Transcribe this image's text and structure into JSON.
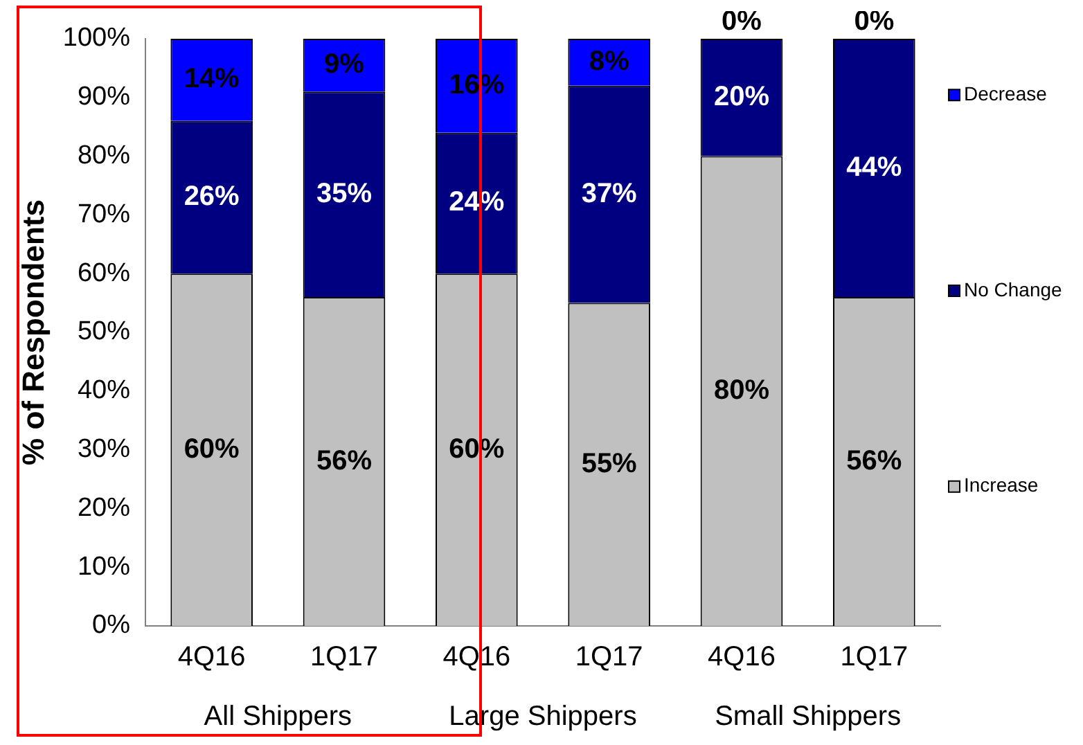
{
  "chart_data": {
    "type": "bar",
    "stacked": true,
    "ylabel": "% of Respondents",
    "categories": [
      "4Q16",
      "1Q17",
      "4Q16",
      "1Q17",
      "4Q16",
      "1Q17"
    ],
    "series": [
      {
        "name": "Increase",
        "color": "#c0c0c0",
        "values": [
          60,
          56,
          60,
          55,
          80,
          56
        ],
        "value_labels": [
          "60%",
          "56%",
          "60%",
          "55%",
          "80%",
          "56%"
        ]
      },
      {
        "name": "No Change",
        "color": "#000080",
        "values": [
          26,
          35,
          24,
          37,
          20,
          44
        ],
        "value_labels": [
          "26%",
          "35%",
          "24%",
          "37%",
          "20%",
          "44%"
        ]
      },
      {
        "name": "Decrease",
        "color": "#0000ff",
        "values": [
          14,
          9,
          16,
          8,
          0,
          0
        ],
        "value_labels": [
          "14%",
          "9%",
          "16%",
          "8%",
          "0%",
          "0%"
        ]
      }
    ],
    "ylim": [
      0,
      100
    ],
    "yticks": [
      {
        "value": 0,
        "label": "0%"
      },
      {
        "value": 10,
        "label": "10%"
      },
      {
        "value": 20,
        "label": "20%"
      },
      {
        "value": 30,
        "label": "30%"
      },
      {
        "value": 40,
        "label": "40%"
      },
      {
        "value": 50,
        "label": "50%"
      },
      {
        "value": 60,
        "label": "60%"
      },
      {
        "value": 70,
        "label": "70%"
      },
      {
        "value": 80,
        "label": "80%"
      },
      {
        "value": 90,
        "label": "90%"
      },
      {
        "value": 100,
        "label": "100%"
      }
    ],
    "grid": false,
    "legend": "right",
    "annotations": [
      "All Shippers",
      "Large Shippers",
      "Small Shippers"
    ]
  }
}
